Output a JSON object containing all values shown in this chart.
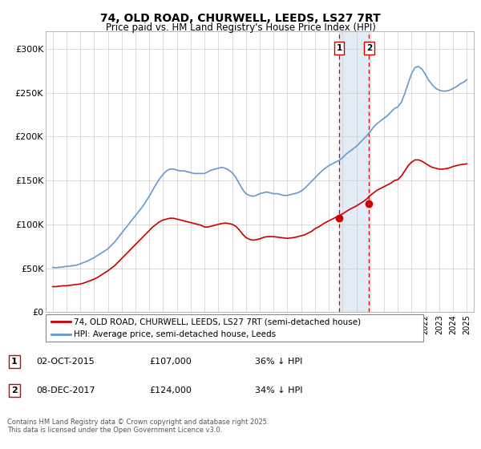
{
  "title": "74, OLD ROAD, CHURWELL, LEEDS, LS27 7RT",
  "subtitle": "Price paid vs. HM Land Registry's House Price Index (HPI)",
  "legend_line1": "74, OLD ROAD, CHURWELL, LEEDS, LS27 7RT (semi-detached house)",
  "legend_line2": "HPI: Average price, semi-detached house, Leeds",
  "footer": "Contains HM Land Registry data © Crown copyright and database right 2025.\nThis data is licensed under the Open Government Licence v3.0.",
  "transaction1_date": "02-OCT-2015",
  "transaction1_price": "£107,000",
  "transaction1_hpi": "36% ↓ HPI",
  "transaction2_date": "08-DEC-2017",
  "transaction2_price": "£124,000",
  "transaction2_hpi": "34% ↓ HPI",
  "hpi_color": "#6699cc",
  "price_color": "#cc0000",
  "marker1_x": 2015.75,
  "marker1_y": 107000,
  "marker2_x": 2017.92,
  "marker2_y": 124000,
  "ylim": [
    0,
    320000
  ],
  "xlim": [
    1994.5,
    2025.5
  ],
  "yticks": [
    0,
    50000,
    100000,
    150000,
    200000,
    250000,
    300000
  ],
  "ytick_labels": [
    "£0",
    "£50K",
    "£100K",
    "£150K",
    "£200K",
    "£250K",
    "£300K"
  ],
  "xticks": [
    1995,
    1996,
    1997,
    1998,
    1999,
    2000,
    2001,
    2002,
    2003,
    2004,
    2005,
    2006,
    2007,
    2008,
    2009,
    2010,
    2011,
    2012,
    2013,
    2014,
    2015,
    2016,
    2017,
    2018,
    2019,
    2020,
    2021,
    2022,
    2023,
    2024,
    2025
  ],
  "hpi_data_x": [
    1995.0,
    1995.25,
    1995.5,
    1995.75,
    1996.0,
    1996.25,
    1996.5,
    1996.75,
    1997.0,
    1997.25,
    1997.5,
    1997.75,
    1998.0,
    1998.25,
    1998.5,
    1998.75,
    1999.0,
    1999.25,
    1999.5,
    1999.75,
    2000.0,
    2000.25,
    2000.5,
    2000.75,
    2001.0,
    2001.25,
    2001.5,
    2001.75,
    2002.0,
    2002.25,
    2002.5,
    2002.75,
    2003.0,
    2003.25,
    2003.5,
    2003.75,
    2004.0,
    2004.25,
    2004.5,
    2004.75,
    2005.0,
    2005.25,
    2005.5,
    2005.75,
    2006.0,
    2006.25,
    2006.5,
    2006.75,
    2007.0,
    2007.25,
    2007.5,
    2007.75,
    2008.0,
    2008.25,
    2008.5,
    2008.75,
    2009.0,
    2009.25,
    2009.5,
    2009.75,
    2010.0,
    2010.25,
    2010.5,
    2010.75,
    2011.0,
    2011.25,
    2011.5,
    2011.75,
    2012.0,
    2012.25,
    2012.5,
    2012.75,
    2013.0,
    2013.25,
    2013.5,
    2013.75,
    2014.0,
    2014.25,
    2014.5,
    2014.75,
    2015.0,
    2015.25,
    2015.5,
    2015.75,
    2016.0,
    2016.25,
    2016.5,
    2016.75,
    2017.0,
    2017.25,
    2017.5,
    2017.75,
    2018.0,
    2018.25,
    2018.5,
    2018.75,
    2019.0,
    2019.25,
    2019.5,
    2019.75,
    2020.0,
    2020.25,
    2020.5,
    2020.75,
    2021.0,
    2021.25,
    2021.5,
    2021.75,
    2022.0,
    2022.25,
    2022.5,
    2022.75,
    2023.0,
    2023.25,
    2023.5,
    2023.75,
    2024.0,
    2024.25,
    2024.5,
    2024.75,
    2025.0
  ],
  "hpi_data_y": [
    51000,
    50500,
    51000,
    51500,
    52000,
    52500,
    53000,
    53500,
    55000,
    56500,
    58000,
    60000,
    62000,
    64500,
    67000,
    69500,
    72000,
    76000,
    80000,
    85000,
    90000,
    95000,
    100000,
    105000,
    110000,
    115000,
    120000,
    126000,
    132000,
    139000,
    146000,
    152000,
    157000,
    161000,
    163000,
    163000,
    162000,
    161000,
    161000,
    160000,
    159000,
    158000,
    158000,
    158000,
    158000,
    160000,
    162000,
    163000,
    164000,
    165000,
    164000,
    162000,
    159000,
    154000,
    147000,
    140000,
    135000,
    133000,
    132000,
    133000,
    135000,
    136000,
    137000,
    136000,
    135000,
    135000,
    134000,
    133000,
    133000,
    134000,
    135000,
    136000,
    138000,
    141000,
    145000,
    149000,
    153000,
    157000,
    161000,
    164000,
    167000,
    169000,
    171000,
    173000,
    176000,
    180000,
    183000,
    186000,
    189000,
    193000,
    197000,
    201000,
    206000,
    211000,
    215000,
    218000,
    221000,
    224000,
    228000,
    232000,
    234000,
    239000,
    249000,
    261000,
    272000,
    279000,
    280000,
    277000,
    271000,
    264000,
    259000,
    255000,
    253000,
    252000,
    252000,
    253000,
    255000,
    257000,
    260000,
    262000,
    265000
  ],
  "price_data_x": [
    1995.0,
    1995.25,
    1995.5,
    1995.75,
    1996.0,
    1996.25,
    1996.5,
    1996.75,
    1997.0,
    1997.25,
    1997.5,
    1997.75,
    1998.0,
    1998.25,
    1998.5,
    1998.75,
    1999.0,
    1999.25,
    1999.5,
    1999.75,
    2000.0,
    2000.25,
    2000.5,
    2000.75,
    2001.0,
    2001.25,
    2001.5,
    2001.75,
    2002.0,
    2002.25,
    2002.5,
    2002.75,
    2003.0,
    2003.25,
    2003.5,
    2003.75,
    2004.0,
    2004.25,
    2004.5,
    2004.75,
    2005.0,
    2005.25,
    2005.5,
    2005.75,
    2006.0,
    2006.25,
    2006.5,
    2006.75,
    2007.0,
    2007.25,
    2007.5,
    2007.75,
    2008.0,
    2008.25,
    2008.5,
    2008.75,
    2009.0,
    2009.25,
    2009.5,
    2009.75,
    2010.0,
    2010.25,
    2010.5,
    2010.75,
    2011.0,
    2011.25,
    2011.5,
    2011.75,
    2012.0,
    2012.25,
    2012.5,
    2012.75,
    2013.0,
    2013.25,
    2013.5,
    2013.75,
    2014.0,
    2014.25,
    2014.5,
    2014.75,
    2015.0,
    2015.25,
    2015.5,
    2015.75,
    2016.0,
    2016.25,
    2016.5,
    2016.75,
    2017.0,
    2017.25,
    2017.5,
    2017.75,
    2018.0,
    2018.25,
    2018.5,
    2018.75,
    2019.0,
    2019.25,
    2019.5,
    2019.75,
    2020.0,
    2020.25,
    2020.5,
    2020.75,
    2021.0,
    2021.25,
    2021.5,
    2021.75,
    2022.0,
    2022.25,
    2022.5,
    2022.75,
    2023.0,
    2023.25,
    2023.5,
    2023.75,
    2024.0,
    2024.25,
    2024.5,
    2024.75,
    2025.0
  ],
  "price_data_y": [
    29000,
    29000,
    29500,
    30000,
    30000,
    30500,
    31000,
    31500,
    32000,
    33000,
    34500,
    36000,
    37500,
    39500,
    42000,
    44500,
    47000,
    50000,
    53000,
    57000,
    61000,
    65000,
    69000,
    73000,
    77000,
    81000,
    85000,
    89000,
    93000,
    97000,
    100000,
    103000,
    105000,
    106000,
    107000,
    107000,
    106000,
    105000,
    104000,
    103000,
    102000,
    101000,
    100000,
    99000,
    97000,
    97000,
    98000,
    99000,
    100000,
    101000,
    101500,
    101000,
    100000,
    98000,
    94000,
    89000,
    85000,
    83000,
    82000,
    82500,
    83500,
    85000,
    86000,
    86000,
    86000,
    85500,
    85000,
    84500,
    84000,
    84500,
    85000,
    86000,
    87000,
    88000,
    90000,
    92000,
    95000,
    97000,
    99500,
    102000,
    104000,
    106000,
    108000,
    110000,
    112000,
    114500,
    117000,
    119000,
    121000,
    123500,
    126000,
    129000,
    133000,
    136000,
    139000,
    141000,
    143000,
    145000,
    147000,
    150000,
    151000,
    155000,
    161000,
    167000,
    171000,
    173500,
    173500,
    172000,
    169500,
    167000,
    165000,
    164000,
    163000,
    163000,
    163500,
    164500,
    166000,
    167000,
    168000,
    168500,
    169000
  ]
}
